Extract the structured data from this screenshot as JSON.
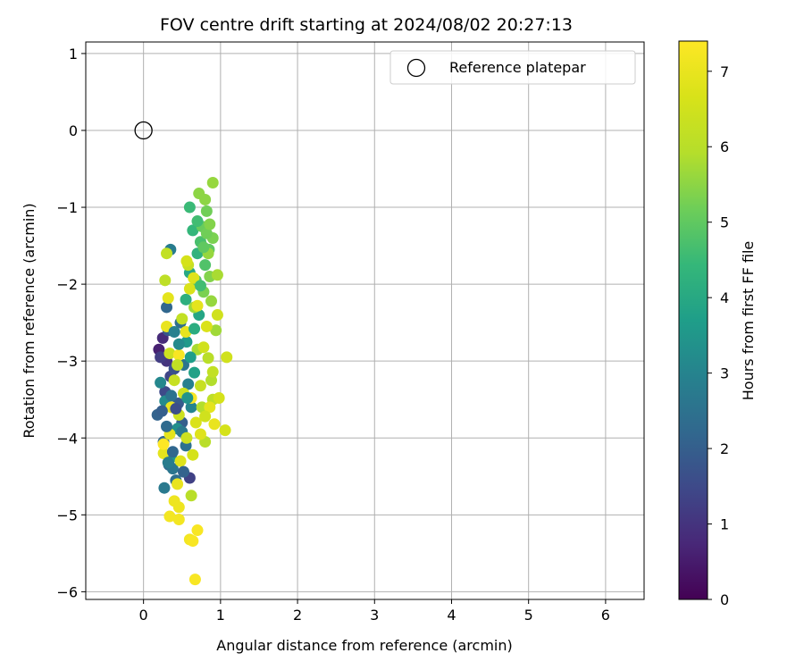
{
  "chart_data": {
    "type": "scatter",
    "title": "FOV centre drift starting at 2024/08/02 20:27:13",
    "xlabel": "Angular distance from reference (arcmin)",
    "ylabel": "Rotation from reference (arcmin)",
    "xlim": [
      -0.75,
      6.5
    ],
    "ylim": [
      -6.1,
      1.15
    ],
    "xticks": [
      0,
      1,
      2,
      3,
      4,
      5,
      6
    ],
    "yticks": [
      1,
      0,
      -1,
      -2,
      -3,
      -4,
      -5,
      -6
    ],
    "xtick_labels": [
      "0",
      "1",
      "2",
      "3",
      "4",
      "5",
      "6"
    ],
    "ytick_labels": [
      "1",
      "0",
      "−1",
      "−2",
      "−3",
      "−4",
      "−5",
      "−6"
    ],
    "grid": true,
    "legend": {
      "position": "top-right",
      "entries": [
        "Reference platepar"
      ]
    },
    "reference_point": {
      "label": "Reference platepar",
      "x": 0,
      "y": 0
    },
    "colorbar": {
      "label": "Hours from first FF file",
      "range": [
        0,
        7.4
      ],
      "ticks": [
        0,
        1,
        2,
        3,
        4,
        5,
        6,
        7
      ],
      "tick_labels": [
        "0",
        "1",
        "2",
        "3",
        "4",
        "5",
        "6",
        "7"
      ],
      "colormap": "viridis"
    },
    "series": [
      {
        "points": [
          [
            0.2,
            -2.85,
            0.6
          ],
          [
            0.25,
            -2.7,
            0.8
          ],
          [
            0.3,
            -3.0,
            1.0
          ],
          [
            0.22,
            -2.95,
            1.2
          ],
          [
            0.35,
            -3.2,
            1.4
          ],
          [
            0.28,
            -3.4,
            1.5
          ],
          [
            0.4,
            -3.1,
            1.7
          ],
          [
            0.32,
            -2.6,
            1.8
          ],
          [
            0.45,
            -3.55,
            1.9
          ],
          [
            0.5,
            -3.8,
            2.0
          ],
          [
            0.18,
            -3.7,
            2.1
          ],
          [
            0.26,
            -4.05,
            2.2
          ],
          [
            0.33,
            -4.35,
            2.3
          ],
          [
            0.42,
            -4.55,
            2.4
          ],
          [
            0.55,
            -4.1,
            2.5
          ],
          [
            0.6,
            -4.52,
            1.3
          ],
          [
            0.38,
            -4.4,
            2.6
          ],
          [
            0.27,
            -4.65,
            2.7
          ],
          [
            0.35,
            -1.55,
            2.8
          ],
          [
            0.3,
            -2.3,
            2.2
          ],
          [
            0.48,
            -2.5,
            2.4
          ],
          [
            0.52,
            -3.05,
            2.6
          ],
          [
            0.58,
            -3.3,
            2.9
          ],
          [
            0.62,
            -3.6,
            3.0
          ],
          [
            0.22,
            -3.28,
            3.1
          ],
          [
            0.28,
            -3.52,
            3.2
          ],
          [
            0.44,
            -3.88,
            3.3
          ],
          [
            0.36,
            -4.25,
            3.5
          ],
          [
            0.56,
            -2.75,
            3.6
          ],
          [
            0.66,
            -3.15,
            3.8
          ],
          [
            0.72,
            -2.4,
            3.9
          ],
          [
            0.6,
            -1.85,
            4.0
          ],
          [
            0.55,
            -2.2,
            4.2
          ],
          [
            0.7,
            -1.6,
            4.3
          ],
          [
            0.64,
            -1.3,
            4.4
          ],
          [
            0.6,
            -1.0,
            4.5
          ],
          [
            0.74,
            -1.45,
            4.7
          ],
          [
            0.8,
            -1.75,
            4.8
          ],
          [
            0.68,
            -1.95,
            4.9
          ],
          [
            0.85,
            -1.55,
            5.0
          ],
          [
            0.76,
            -1.25,
            5.1
          ],
          [
            0.82,
            -1.05,
            5.2
          ],
          [
            0.9,
            -1.4,
            5.3
          ],
          [
            0.78,
            -2.1,
            5.3
          ],
          [
            0.86,
            -1.9,
            5.4
          ],
          [
            0.72,
            -0.82,
            5.5
          ],
          [
            0.8,
            -0.9,
            5.5
          ],
          [
            0.9,
            -0.68,
            5.6
          ],
          [
            0.84,
            -1.6,
            5.6
          ],
          [
            0.66,
            -2.3,
            5.7
          ],
          [
            0.94,
            -2.6,
            5.7
          ],
          [
            0.96,
            -1.88,
            5.8
          ],
          [
            0.7,
            -2.85,
            5.8
          ],
          [
            0.88,
            -3.25,
            5.9
          ],
          [
            0.76,
            -3.6,
            5.9
          ],
          [
            0.62,
            -4.75,
            6.0
          ],
          [
            0.8,
            -4.05,
            6.0
          ],
          [
            0.9,
            -3.5,
            6.1
          ],
          [
            0.28,
            -1.95,
            6.1
          ],
          [
            0.3,
            -1.6,
            6.2
          ],
          [
            0.5,
            -2.45,
            6.2
          ],
          [
            0.58,
            -1.75,
            6.3
          ],
          [
            0.4,
            -3.25,
            6.3
          ],
          [
            0.34,
            -2.9,
            6.4
          ],
          [
            0.46,
            -3.7,
            6.4
          ],
          [
            0.96,
            -2.4,
            6.5
          ],
          [
            1.08,
            -2.95,
            6.5
          ],
          [
            0.98,
            -3.48,
            6.6
          ],
          [
            1.06,
            -3.9,
            6.6
          ],
          [
            0.82,
            -2.55,
            6.7
          ],
          [
            0.74,
            -3.95,
            6.8
          ],
          [
            0.48,
            -4.3,
            6.8
          ],
          [
            0.26,
            -4.2,
            6.9
          ],
          [
            0.34,
            -3.95,
            6.9
          ],
          [
            0.36,
            -3.6,
            7.0
          ],
          [
            0.44,
            -4.6,
            7.0
          ],
          [
            0.4,
            -4.82,
            7.1
          ],
          [
            0.46,
            -4.9,
            7.1
          ],
          [
            0.34,
            -5.02,
            7.2
          ],
          [
            0.46,
            -5.06,
            7.2
          ],
          [
            0.6,
            -5.32,
            7.2
          ],
          [
            0.64,
            -5.34,
            7.3
          ],
          [
            0.7,
            -5.2,
            7.3
          ],
          [
            0.67,
            -5.84,
            7.3
          ],
          [
            0.32,
            -2.18,
            6.9
          ],
          [
            0.3,
            -2.55,
            7.0
          ],
          [
            0.46,
            -2.92,
            7.3
          ],
          [
            0.62,
            -3.48,
            7.3
          ],
          [
            0.92,
            -3.82,
            7.0
          ],
          [
            0.26,
            -4.08,
            7.4
          ],
          [
            0.56,
            -1.7,
            6.6
          ],
          [
            0.65,
            -1.92,
            6.8
          ],
          [
            0.6,
            -2.06,
            6.7
          ],
          [
            0.7,
            -2.28,
            6.9
          ],
          [
            0.55,
            -2.62,
            7.0
          ],
          [
            0.78,
            -2.82,
            6.5
          ],
          [
            0.44,
            -3.05,
            6.2
          ],
          [
            0.52,
            -3.42,
            6.4
          ],
          [
            0.68,
            -3.8,
            6.7
          ],
          [
            0.86,
            -3.6,
            6.9
          ],
          [
            0.24,
            -3.65,
            2.0
          ],
          [
            0.3,
            -3.85,
            2.3
          ],
          [
            0.36,
            -3.45,
            2.5
          ],
          [
            0.42,
            -3.62,
            1.6
          ],
          [
            0.5,
            -3.92,
            2.7
          ],
          [
            0.57,
            -3.48,
            3.4
          ],
          [
            0.61,
            -2.95,
            3.7
          ],
          [
            0.46,
            -2.78,
            3.2
          ],
          [
            0.4,
            -2.62,
            2.9
          ],
          [
            0.66,
            -2.58,
            4.1
          ],
          [
            0.74,
            -2.02,
            4.6
          ],
          [
            0.78,
            -1.52,
            5.0
          ],
          [
            0.82,
            -1.34,
            5.2
          ],
          [
            0.86,
            -1.22,
            5.4
          ],
          [
            0.7,
            -1.18,
            4.6
          ],
          [
            0.88,
            -2.22,
            5.6
          ],
          [
            0.84,
            -2.96,
            6.0
          ],
          [
            0.9,
            -3.14,
            6.2
          ],
          [
            0.74,
            -3.32,
            6.3
          ],
          [
            0.8,
            -3.72,
            6.5
          ],
          [
            0.56,
            -4.0,
            6.4
          ],
          [
            0.64,
            -4.22,
            6.6
          ],
          [
            0.52,
            -4.44,
            2.1
          ],
          [
            0.38,
            -4.18,
            2.2
          ],
          [
            0.32,
            -4.32,
            2.8
          ]
        ]
      }
    ]
  }
}
